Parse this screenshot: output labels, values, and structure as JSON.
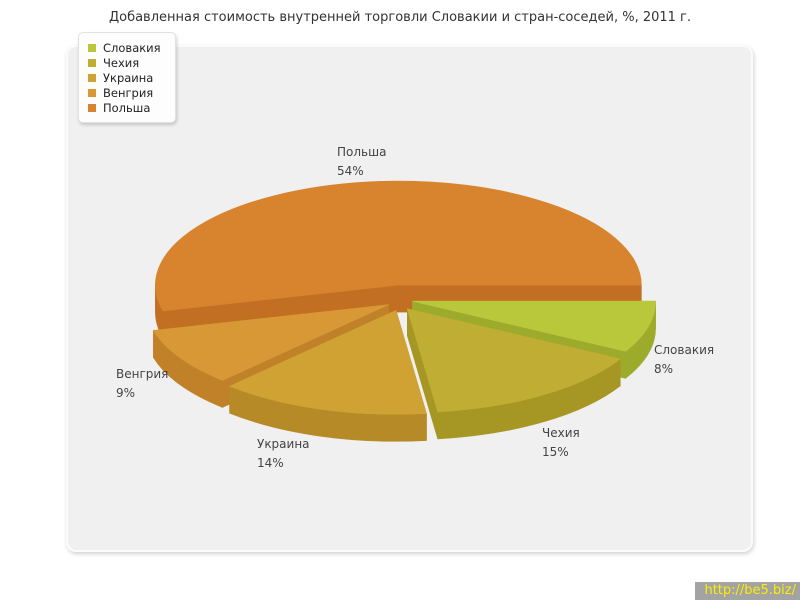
{
  "chart_data": {
    "type": "pie",
    "title": "Добавленная стоимость внутренней торговли Словакии и стран-соседей, %, 2011 г.",
    "legend_position": "top-left",
    "value_suffix": "%",
    "start_angle_deg": 0,
    "direction": "clockwise",
    "slices": [
      {
        "label": "Словакия",
        "value": 8,
        "color": "#b9c83b",
        "side_color": "#9dab2d"
      },
      {
        "label": "Чехия",
        "value": 15,
        "color": "#bfae33",
        "side_color": "#a69724"
      },
      {
        "label": "Украина",
        "value": 14,
        "color": "#cfa233",
        "side_color": "#b68b27"
      },
      {
        "label": "Венгрия",
        "value": 9,
        "color": "#d99836",
        "side_color": "#c08128"
      },
      {
        "label": "Польша",
        "value": 54,
        "color": "#d8832d",
        "side_color": "#c26f24"
      }
    ]
  },
  "watermark": {
    "text": "http://be5.biz/",
    "bg": "#a3a3a3",
    "fg": "#fbee00"
  }
}
